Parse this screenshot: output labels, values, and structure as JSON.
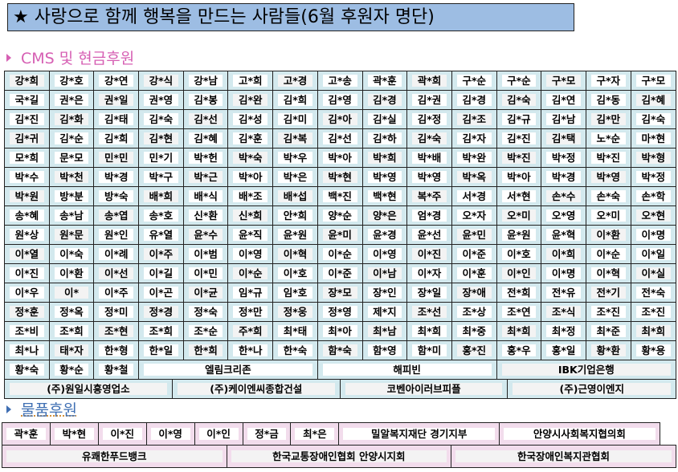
{
  "title": "★ 사랑으로 함께 행복을 만드는 사람들(6월 후원자 명단)",
  "cms_section": {
    "label": "CMS 및 현금후원",
    "color": "#d65fb3",
    "rows": [
      [
        "강*희",
        "강*호",
        "강*연",
        "강*식",
        "강*남",
        "고*희",
        "고*경",
        "고*송",
        "곽*훈",
        "곽*희",
        "구*순",
        "구*순",
        "구*모",
        "구*자",
        "구*모"
      ],
      [
        "국*길",
        "권*은",
        "권*일",
        "권*영",
        "김*봉",
        "김*완",
        "김*희",
        "김*영",
        "김*경",
        "김*권",
        "김*경",
        "김*숙",
        "김*연",
        "김*동",
        "김*혜"
      ],
      [
        "김*진",
        "김*화",
        "김*태",
        "김*숙",
        "김*선",
        "김*성",
        "김*미",
        "김*아",
        "김*실",
        "김*정",
        "김*조",
        "김*규",
        "김*남",
        "김*만",
        "김*숙"
      ],
      [
        "김*귀",
        "김*순",
        "김*희",
        "김*현",
        "김*혜",
        "김*훈",
        "김*복",
        "김*선",
        "김*하",
        "김*숙",
        "김*자",
        "김*진",
        "김*택",
        "노*순",
        "마*현"
      ],
      [
        "모*희",
        "문*모",
        "민*민",
        "민*기",
        "박*헌",
        "박*숙",
        "박*우",
        "박*아",
        "박*희",
        "박*배",
        "박*완",
        "박*진",
        "박*정",
        "박*진",
        "박*형"
      ],
      [
        "박*수",
        "박*천",
        "박*경",
        "박*구",
        "박*근",
        "박*아",
        "박*은",
        "박*현",
        "박*영",
        "박*영",
        "박*옥",
        "박*아",
        "박*경",
        "박*영",
        "박*정"
      ],
      [
        "박*원",
        "방*분",
        "방*숙",
        "배*희",
        "배*식",
        "배*조",
        "배*섭",
        "백*진",
        "백*현",
        "복*주",
        "서*경",
        "서*현",
        "손*수",
        "손*숙",
        "손*학"
      ],
      [
        "송*혜",
        "송*남",
        "송*엽",
        "송*호",
        "신*환",
        "신*희",
        "안*희",
        "양*순",
        "양*은",
        "엄*경",
        "오*자",
        "오*미",
        "오*영",
        "오*미",
        "오*현"
      ],
      [
        "원*상",
        "원*문",
        "원*인",
        "유*열",
        "윤*수",
        "윤*직",
        "윤*원",
        "윤*미",
        "윤*경",
        "윤*선",
        "윤*민",
        "윤*원",
        "윤*혁",
        "이*환",
        "이*명"
      ],
      [
        "이*열",
        "이*숙",
        "이*례",
        "이*주",
        "이*범",
        "이*영",
        "이*혁",
        "이*순",
        "이*영",
        "이*진",
        "이*준",
        "이*호",
        "이*희",
        "이*순",
        "이*일"
      ],
      [
        "이*진",
        "이*환",
        "이*선",
        "이*길",
        "이*민",
        "이*순",
        "이*호",
        "이*준",
        "이*남",
        "이*자",
        "이*훈",
        "이*인",
        "이*명",
        "이*혁",
        "이*실"
      ],
      [
        "이*우",
        "이*",
        "이*주",
        "이*곤",
        "이*균",
        "임*규",
        "임*호",
        "장*모",
        "장*인",
        "장*일",
        "장*애",
        "전*희",
        "전*유",
        "전*기",
        "전*숙"
      ],
      [
        "정*훈",
        "정*옥",
        "정*미",
        "정*경",
        "정*숙",
        "정*만",
        "정*웅",
        "정*영",
        "제*지",
        "조*선",
        "조*상",
        "조*연",
        "조*식",
        "조*진",
        "조*진"
      ],
      [
        "조*비",
        "조*희",
        "조*현",
        "조*희",
        "조*순",
        "주*희",
        "최*태",
        "최*아",
        "최*남",
        "최*희",
        "최*중",
        "최*희",
        "최*정",
        "최*준",
        "최*희"
      ],
      [
        "최*나",
        "태*자",
        "한*형",
        "한*일",
        "한*희",
        "한*나",
        "한*숙",
        "함*숙",
        "함*영",
        "함*미",
        "홍*진",
        "홍*우",
        "홍*일",
        "황*환",
        "황*용"
      ]
    ],
    "row16": [
      "황*숙",
      "황*순",
      "황*철",
      "엘림크리존",
      "해피빈",
      "IBK기업은행"
    ],
    "companies": [
      "(주)원일시흥영업소",
      "(주)케이엔씨종합건설",
      "코벤아이러브피플",
      "(주)근영이엔지"
    ]
  },
  "goods_section": {
    "label": "물품후원",
    "color": "#3f6fb3",
    "row1": [
      "곽*훈",
      "박*현",
      "이*진",
      "이*영",
      "이*인",
      "정*금",
      "최*은",
      "밀알복지재단 경기지부",
      "안양시사회복지협의회"
    ],
    "row2": [
      "유쾌한푸드뱅크",
      "한국교통장애인협회 안양시지회",
      "한국장애인복지관협회"
    ]
  }
}
